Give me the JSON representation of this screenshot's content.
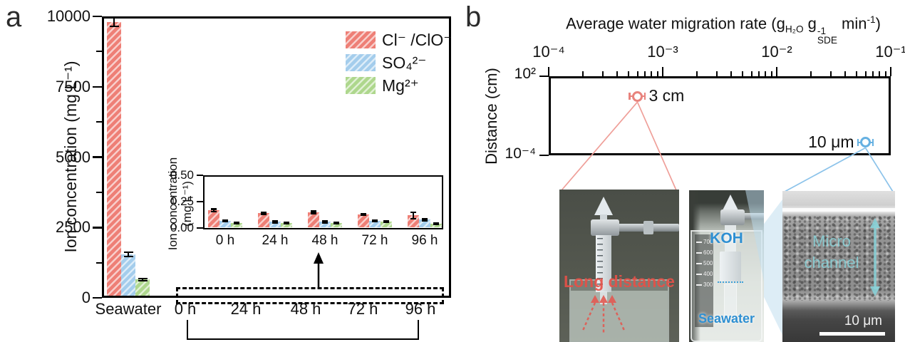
{
  "panel_a": {
    "label": "a",
    "y_axis_title": "Ion concentration (mg L⁻¹)",
    "inset_y_title_line1": "Ion concentration",
    "inset_y_title_line2": "(mg L⁻¹)"
  },
  "panel_b": {
    "label": "b",
    "x_axis_title": {
      "prefix": "Average water migration rate (g",
      "sub1": "H₂O",
      "mid": " g",
      "sup2": "-1",
      "sub2": "SDE",
      "end": " min",
      "sup3": "-1",
      "close": ")"
    },
    "y_axis_title": "Distance (cm)",
    "photos": {
      "long_distance": {
        "caption": "Long distance",
        "color": "#e2554d"
      },
      "beaker": {
        "top_label": "KOH",
        "bottom_label": "Seawater",
        "label_color": "#2e8fd2",
        "graduations": [
          "700",
          "600",
          "500",
          "400",
          "300"
        ]
      },
      "sem": {
        "caption_line1": "Micro",
        "caption_line2": "channel",
        "caption_color": "#8ad2d8",
        "scale_label": "10 μm"
      }
    }
  },
  "chart_data": [
    {
      "id": "ion-main",
      "type": "bar",
      "title": "",
      "xlabel": "",
      "ylabel": "Ion concentration (mg L⁻¹)",
      "categories": [
        "Seawater",
        "0 h",
        "24 h",
        "48 h",
        "72 h",
        "96 h"
      ],
      "series": [
        {
          "name": "Cl⁻ /ClO⁻",
          "color": "#ee7f76",
          "values": [
            9800,
            0.17,
            0.14,
            0.15,
            0.13,
            0.12
          ],
          "errors": [
            150,
            0.012,
            0.008,
            0.01,
            0.008,
            0.03
          ]
        },
        {
          "name": "SO₄²⁻",
          "color": "#a4cdec",
          "values": [
            1550,
            0.07,
            0.06,
            0.06,
            0.07,
            0.08
          ],
          "errors": [
            80,
            0.006,
            0.006,
            0.006,
            0.006,
            0.008
          ]
        },
        {
          "name": "Mg²⁺",
          "color": "#aed78d",
          "values": [
            650,
            0.05,
            0.05,
            0.05,
            0.06,
            0.04
          ],
          "errors": [
            40,
            0.005,
            0.005,
            0.005,
            0.005,
            0.005
          ]
        }
      ],
      "ylim": [
        0,
        10000
      ],
      "yticks": [
        0,
        2500,
        5000,
        7500,
        10000
      ],
      "ytick_labels": [
        "0",
        "2500",
        "5000",
        "7500",
        "10000"
      ],
      "yticks_minor": [
        1250,
        3750,
        6250,
        8750
      ],
      "grid": false,
      "legend_position": "top-right"
    },
    {
      "id": "ion-inset",
      "type": "bar",
      "title": "",
      "xlabel": "",
      "ylabel": "Ion concentration (mg L⁻¹)",
      "categories": [
        "0 h",
        "24 h",
        "48 h",
        "72 h",
        "96 h"
      ],
      "series": [
        {
          "name": "Cl⁻ /ClO⁻",
          "color": "#ee7f76",
          "values": [
            0.17,
            0.14,
            0.15,
            0.13,
            0.12
          ],
          "errors": [
            0.012,
            0.008,
            0.01,
            0.008,
            0.03
          ]
        },
        {
          "name": "SO₄²⁻",
          "color": "#a4cdec",
          "values": [
            0.07,
            0.06,
            0.06,
            0.07,
            0.08
          ],
          "errors": [
            0.006,
            0.006,
            0.006,
            0.006,
            0.008
          ]
        },
        {
          "name": "Mg²⁺",
          "color": "#aed78d",
          "values": [
            0.05,
            0.05,
            0.05,
            0.06,
            0.04
          ],
          "errors": [
            0.005,
            0.005,
            0.005,
            0.005,
            0.005
          ]
        }
      ],
      "ylim": [
        0,
        0.5
      ],
      "yticks": [
        0,
        0.25,
        0.5
      ],
      "ytick_labels": [
        "0.00",
        "0.25",
        "0.50"
      ],
      "grid": false
    },
    {
      "id": "migration-scatter",
      "type": "scatter",
      "xlabel": "Average water migration rate (g_H2O g_SDE^-1 min^-1)",
      "ylabel": "Distance (cm)",
      "xscale": "log",
      "yscale": "log",
      "xlim": [
        0.0001,
        0.1
      ],
      "ylim": [
        0.0001,
        100
      ],
      "xticks": [
        0.0001,
        0.001,
        0.01,
        0.1
      ],
      "xtick_labels": [
        "10⁻⁴",
        "10⁻³",
        "10⁻²",
        "10⁻¹"
      ],
      "yticks": [
        100,
        0.0001
      ],
      "ytick_labels": [
        "10²",
        "10⁻⁴"
      ],
      "points": [
        {
          "x": 0.0006,
          "y": 3,
          "xerr_lo": 0.00051,
          "xerr_hi": 0.0007,
          "label": "3 cm",
          "label_side": "right",
          "color": "#e8837d",
          "connect": "photo1"
        },
        {
          "x": 0.06,
          "y": 0.001,
          "xerr_lo": 0.0513,
          "xerr_hi": 0.0702,
          "label": "10 μm",
          "label_side": "left",
          "color": "#66b1e2",
          "connect": "photo3"
        }
      ]
    }
  ]
}
